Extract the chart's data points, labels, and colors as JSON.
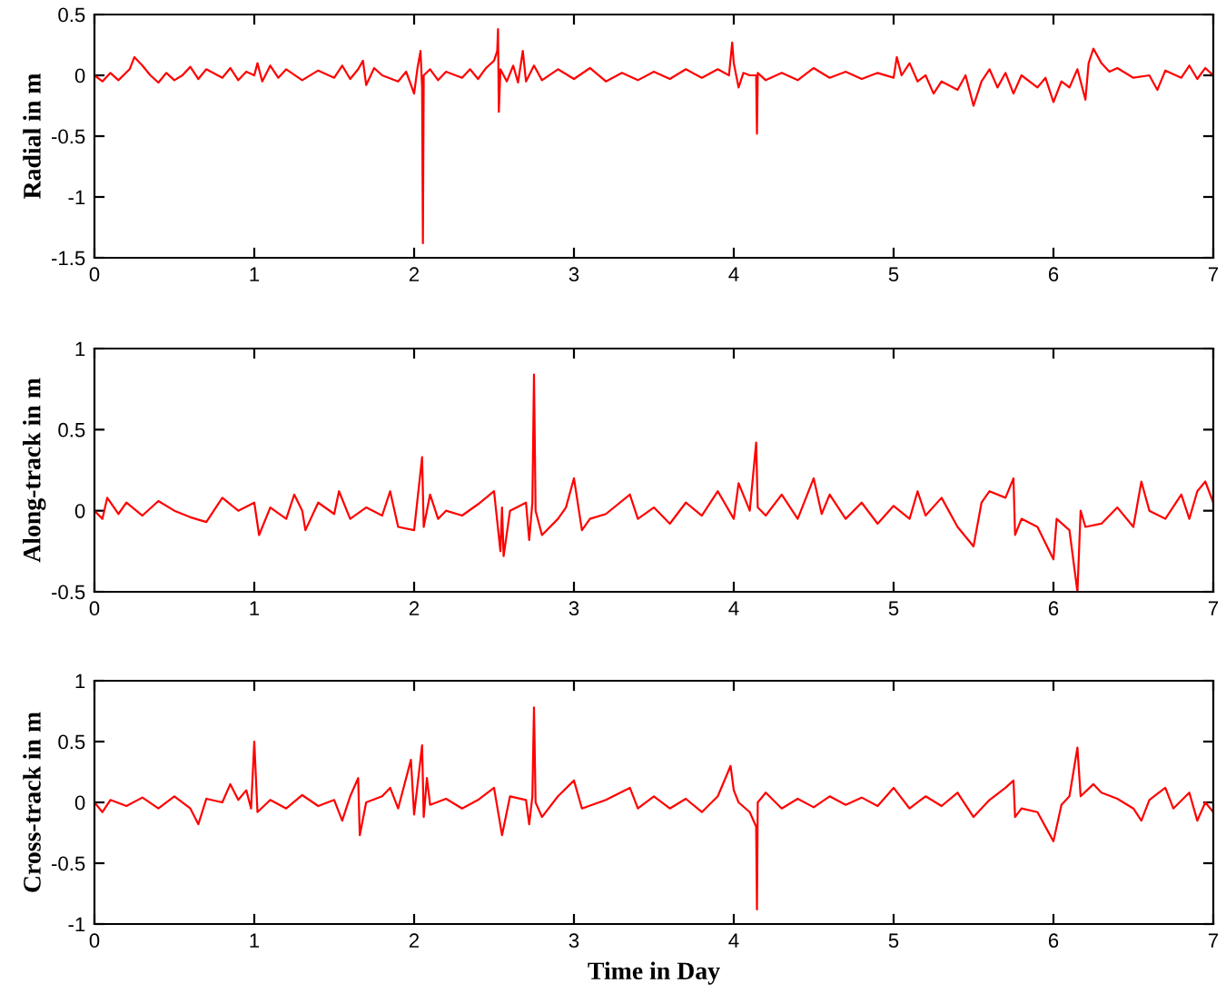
{
  "chart_data": [
    {
      "type": "line",
      "ylabel": "Radial in m",
      "xlim": [
        0,
        7
      ],
      "xticks": [
        0,
        1,
        2,
        3,
        4,
        5,
        6,
        7
      ],
      "ylim": [
        -1.5,
        0.5
      ],
      "yticks": [
        -1.5,
        -1,
        -0.5,
        0,
        0.5
      ],
      "grid": false,
      "legend": false,
      "series": [
        {
          "color": "#ff0000",
          "x": [
            0,
            0.05,
            0.1,
            0.15,
            0.22,
            0.25,
            0.3,
            0.35,
            0.4,
            0.45,
            0.5,
            0.55,
            0.6,
            0.65,
            0.7,
            0.8,
            0.85,
            0.9,
            0.95,
            1.0,
            1.02,
            1.05,
            1.1,
            1.15,
            1.2,
            1.3,
            1.4,
            1.5,
            1.55,
            1.6,
            1.65,
            1.68,
            1.7,
            1.75,
            1.8,
            1.9,
            1.95,
            2.0,
            2.02,
            2.04,
            2.05,
            2.055,
            2.06,
            2.1,
            2.15,
            2.2,
            2.3,
            2.35,
            2.4,
            2.45,
            2.5,
            2.52,
            2.525,
            2.53,
            2.54,
            2.58,
            2.62,
            2.65,
            2.68,
            2.7,
            2.75,
            2.8,
            2.9,
            3.0,
            3.1,
            3.2,
            3.3,
            3.4,
            3.5,
            3.6,
            3.7,
            3.8,
            3.9,
            3.97,
            3.99,
            4.0,
            4.03,
            4.06,
            4.1,
            4.14,
            4.145,
            4.15,
            4.2,
            4.3,
            4.4,
            4.5,
            4.6,
            4.7,
            4.8,
            4.9,
            5.0,
            5.02,
            5.05,
            5.1,
            5.15,
            5.2,
            5.25,
            5.3,
            5.4,
            5.45,
            5.5,
            5.55,
            5.6,
            5.65,
            5.7,
            5.75,
            5.8,
            5.9,
            5.95,
            6.0,
            6.05,
            6.1,
            6.15,
            6.2,
            6.22,
            6.25,
            6.3,
            6.35,
            6.4,
            6.5,
            6.6,
            6.65,
            6.7,
            6.8,
            6.85,
            6.9,
            6.95,
            7.0
          ],
          "values": [
            0,
            -0.05,
            0.02,
            -0.04,
            0.05,
            0.15,
            0.08,
            0.0,
            -0.06,
            0.02,
            -0.04,
            0.0,
            0.07,
            -0.03,
            0.05,
            -0.02,
            0.06,
            -0.04,
            0.03,
            0.0,
            0.1,
            -0.05,
            0.08,
            -0.02,
            0.05,
            -0.04,
            0.04,
            -0.02,
            0.08,
            -0.03,
            0.05,
            0.12,
            -0.08,
            0.06,
            0.0,
            -0.05,
            0.03,
            -0.15,
            0.05,
            0.2,
            -0.1,
            -1.38,
            0.0,
            0.05,
            -0.04,
            0.03,
            -0.02,
            0.05,
            -0.03,
            0.06,
            0.12,
            0.2,
            0.38,
            -0.3,
            0.05,
            -0.05,
            0.08,
            -0.06,
            0.2,
            -0.05,
            0.08,
            -0.04,
            0.05,
            -0.03,
            0.06,
            -0.05,
            0.02,
            -0.04,
            0.03,
            -0.03,
            0.05,
            -0.02,
            0.05,
            0.0,
            0.27,
            0.1,
            -0.1,
            0.02,
            0.0,
            0.0,
            -0.48,
            0.02,
            -0.04,
            0.02,
            -0.04,
            0.06,
            -0.02,
            0.03,
            -0.03,
            0.02,
            -0.02,
            0.15,
            0.0,
            0.1,
            -0.05,
            0.0,
            -0.15,
            -0.05,
            -0.12,
            0.0,
            -0.25,
            -0.05,
            0.05,
            -0.1,
            0.02,
            -0.15,
            0.0,
            -0.1,
            -0.02,
            -0.22,
            -0.05,
            -0.1,
            0.05,
            -0.2,
            0.1,
            0.22,
            0.1,
            0.03,
            0.06,
            -0.02,
            0.0,
            -0.12,
            0.04,
            -0.02,
            0.08,
            -0.03,
            0.06,
            0.0
          ]
        }
      ]
    },
    {
      "type": "line",
      "ylabel": "Along-track in m",
      "xlim": [
        0,
        7
      ],
      "xticks": [
        0,
        1,
        2,
        3,
        4,
        5,
        6,
        7
      ],
      "ylim": [
        -0.5,
        1
      ],
      "yticks": [
        -0.5,
        0,
        0.5,
        1
      ],
      "grid": false,
      "legend": false,
      "series": [
        {
          "color": "#ff0000",
          "x": [
            0,
            0.05,
            0.08,
            0.15,
            0.2,
            0.3,
            0.4,
            0.5,
            0.6,
            0.7,
            0.8,
            0.9,
            1.0,
            1.03,
            1.1,
            1.2,
            1.25,
            1.3,
            1.32,
            1.4,
            1.5,
            1.53,
            1.6,
            1.7,
            1.8,
            1.85,
            1.9,
            2.0,
            2.05,
            2.06,
            2.1,
            2.15,
            2.2,
            2.3,
            2.4,
            2.5,
            2.54,
            2.55,
            2.56,
            2.6,
            2.7,
            2.72,
            2.74,
            2.75,
            2.76,
            2.8,
            2.9,
            2.95,
            3.0,
            3.05,
            3.1,
            3.2,
            3.35,
            3.4,
            3.5,
            3.6,
            3.7,
            3.8,
            3.9,
            4.0,
            4.03,
            4.1,
            4.14,
            4.15,
            4.2,
            4.3,
            4.4,
            4.5,
            4.55,
            4.6,
            4.7,
            4.8,
            4.9,
            5.0,
            5.1,
            5.15,
            5.2,
            5.3,
            5.4,
            5.5,
            5.55,
            5.6,
            5.7,
            5.75,
            5.76,
            5.8,
            5.9,
            6.0,
            6.02,
            6.1,
            6.15,
            6.17,
            6.2,
            6.3,
            6.4,
            6.5,
            6.55,
            6.6,
            6.7,
            6.8,
            6.85,
            6.9,
            6.95,
            7.0
          ],
          "values": [
            0,
            -0.05,
            0.08,
            -0.02,
            0.05,
            -0.03,
            0.06,
            0.0,
            -0.04,
            -0.07,
            0.08,
            0.0,
            0.05,
            -0.15,
            0.02,
            -0.05,
            0.1,
            0.0,
            -0.12,
            0.05,
            -0.02,
            0.12,
            -0.05,
            0.02,
            -0.03,
            0.12,
            -0.1,
            -0.12,
            0.33,
            -0.1,
            0.1,
            -0.05,
            0.0,
            -0.03,
            0.04,
            0.12,
            -0.25,
            0.02,
            -0.28,
            0.0,
            0.05,
            -0.18,
            0.05,
            0.84,
            0.0,
            -0.15,
            -0.05,
            0.02,
            0.2,
            -0.12,
            -0.05,
            -0.02,
            0.1,
            -0.05,
            0.02,
            -0.08,
            0.05,
            -0.03,
            0.12,
            -0.05,
            0.17,
            0.0,
            0.42,
            0.02,
            -0.03,
            0.1,
            -0.05,
            0.2,
            -0.02,
            0.1,
            -0.05,
            0.05,
            -0.08,
            0.03,
            -0.05,
            0.12,
            -0.03,
            0.08,
            -0.1,
            -0.22,
            0.05,
            0.12,
            0.08,
            0.2,
            -0.15,
            -0.05,
            -0.1,
            -0.3,
            -0.05,
            -0.12,
            -0.5,
            0.0,
            -0.1,
            -0.08,
            0.02,
            -0.1,
            0.18,
            0.0,
            -0.05,
            0.1,
            -0.05,
            0.12,
            0.18,
            0.05
          ]
        }
      ]
    },
    {
      "type": "line",
      "ylabel": "Cross-track in m",
      "xlabel": "Time in Day",
      "xlim": [
        0,
        7
      ],
      "xticks": [
        0,
        1,
        2,
        3,
        4,
        5,
        6,
        7
      ],
      "ylim": [
        -1,
        1
      ],
      "yticks": [
        -1,
        -0.5,
        0,
        0.5,
        1
      ],
      "grid": false,
      "legend": false,
      "series": [
        {
          "color": "#ff0000",
          "x": [
            0,
            0.05,
            0.1,
            0.2,
            0.3,
            0.4,
            0.5,
            0.6,
            0.65,
            0.7,
            0.8,
            0.85,
            0.9,
            0.95,
            0.98,
            1.0,
            1.02,
            1.1,
            1.2,
            1.3,
            1.4,
            1.5,
            1.55,
            1.6,
            1.65,
            1.66,
            1.7,
            1.8,
            1.85,
            1.9,
            1.98,
            2.0,
            2.05,
            2.06,
            2.08,
            2.1,
            2.2,
            2.3,
            2.4,
            2.5,
            2.55,
            2.6,
            2.7,
            2.72,
            2.74,
            2.75,
            2.76,
            2.8,
            2.9,
            3.0,
            3.05,
            3.2,
            3.35,
            3.4,
            3.5,
            3.6,
            3.7,
            3.8,
            3.9,
            3.98,
            4.0,
            4.03,
            4.1,
            4.14,
            4.145,
            4.15,
            4.2,
            4.3,
            4.4,
            4.5,
            4.6,
            4.7,
            4.8,
            4.9,
            5.0,
            5.1,
            5.2,
            5.3,
            5.4,
            5.5,
            5.6,
            5.7,
            5.75,
            5.76,
            5.8,
            5.9,
            6.0,
            6.05,
            6.1,
            6.15,
            6.17,
            6.25,
            6.3,
            6.4,
            6.5,
            6.55,
            6.6,
            6.7,
            6.75,
            6.85,
            6.9,
            6.95,
            7.0
          ],
          "values": [
            0,
            -0.08,
            0.02,
            -0.03,
            0.04,
            -0.05,
            0.05,
            -0.05,
            -0.18,
            0.03,
            0.0,
            0.15,
            0.02,
            0.1,
            -0.05,
            0.5,
            -0.08,
            0.02,
            -0.05,
            0.06,
            -0.03,
            0.02,
            -0.15,
            0.05,
            0.2,
            -0.27,
            0.0,
            0.05,
            0.12,
            -0.05,
            0.35,
            -0.1,
            0.47,
            -0.12,
            0.2,
            -0.02,
            0.03,
            -0.05,
            0.02,
            0.12,
            -0.27,
            0.05,
            0.02,
            -0.18,
            0.05,
            0.78,
            0.0,
            -0.12,
            0.05,
            0.18,
            -0.05,
            0.02,
            0.12,
            -0.05,
            0.05,
            -0.05,
            0.03,
            -0.08,
            0.05,
            0.3,
            0.1,
            0.0,
            -0.08,
            -0.2,
            -0.88,
            0.0,
            0.08,
            -0.05,
            0.03,
            -0.04,
            0.05,
            -0.02,
            0.04,
            -0.03,
            0.12,
            -0.05,
            0.05,
            -0.03,
            0.08,
            -0.12,
            0.02,
            0.12,
            0.18,
            -0.12,
            -0.05,
            -0.08,
            -0.32,
            -0.02,
            0.05,
            0.45,
            0.05,
            0.15,
            0.08,
            0.03,
            -0.05,
            -0.15,
            0.02,
            0.12,
            -0.05,
            0.08,
            -0.15,
            0.0,
            -0.08
          ]
        }
      ]
    }
  ]
}
